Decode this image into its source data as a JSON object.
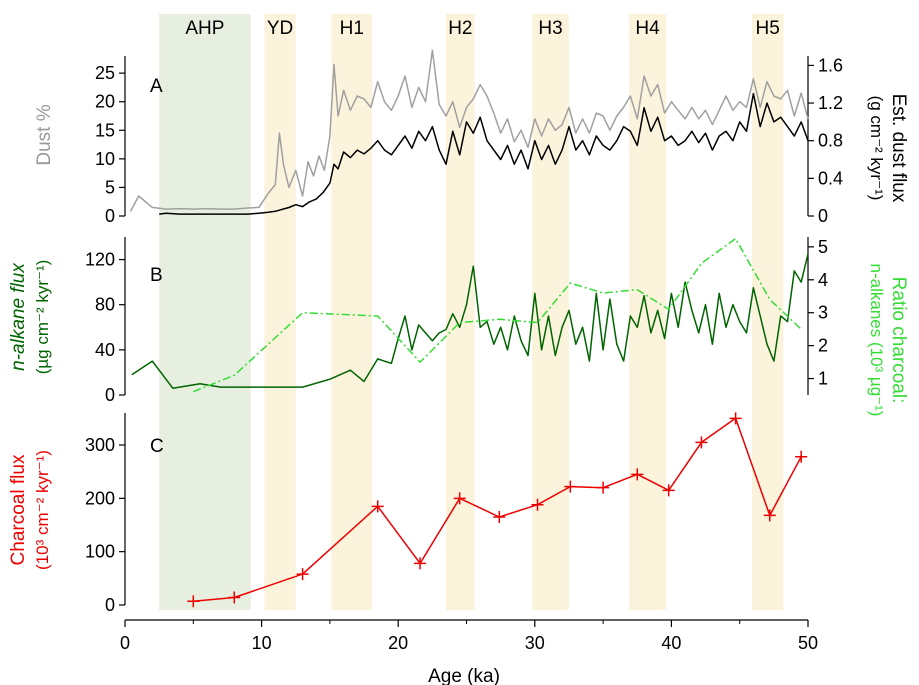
{
  "chart_data": {
    "type": "line",
    "x_axis": {
      "label": "Age (ka)",
      "range": [
        0,
        50
      ],
      "ticks": [
        0,
        10,
        20,
        30,
        40,
        50
      ]
    },
    "shaded_intervals": [
      {
        "label": "AHP",
        "start": 2.5,
        "end": 9.2,
        "color": "#e6efe0"
      },
      {
        "label": "YD",
        "start": 10.2,
        "end": 12.5,
        "color": "#fbf3dc"
      },
      {
        "label": "H1",
        "start": 15.1,
        "end": 18.1,
        "color": "#fbf3dc"
      },
      {
        "label": "H2",
        "start": 23.5,
        "end": 25.6,
        "color": "#fbf3dc"
      },
      {
        "label": "H3",
        "start": 29.8,
        "end": 32.5,
        "color": "#fbf3dc"
      },
      {
        "label": "H4",
        "start": 36.9,
        "end": 39.6,
        "color": "#fbf3dc"
      },
      {
        "label": "H5",
        "start": 45.9,
        "end": 48.2,
        "color": "#fbf3dc"
      }
    ],
    "panels": [
      {
        "id": "A",
        "left_axis": {
          "label": "Dust %",
          "range": [
            0,
            28
          ],
          "ticks": [
            0,
            5,
            10,
            15,
            20,
            25
          ],
          "color": "#999999"
        },
        "right_axis": {
          "label_line1": "Est. dust flux",
          "label_line2": "(g cm⁻² kyr⁻¹)",
          "range": [
            0,
            1.7
          ],
          "ticks": [
            "0",
            "0.4",
            "0.8",
            "1.2",
            "1.6"
          ],
          "color": "#000000"
        },
        "series": [
          {
            "axis": "left",
            "color": "#a0a0a0",
            "x": [
              0.4,
              1.0,
              2.0,
              3.0,
              4.0,
              5.0,
              6.0,
              7.0,
              8.0,
              9.0,
              9.8,
              10.5,
              11.0,
              11.3,
              11.6,
              12.0,
              12.5,
              13.0,
              13.4,
              13.8,
              14.2,
              14.6,
              15.0,
              15.3,
              15.6,
              16.0,
              16.5,
              17.0,
              17.5,
              18.0,
              18.5,
              19.0,
              19.5,
              20.0,
              20.5,
              21.0,
              21.5,
              22.0,
              22.5,
              23.0,
              23.5,
              24.0,
              24.5,
              25.0,
              25.5,
              26.0,
              26.5,
              27.0,
              27.5,
              28.0,
              28.5,
              29.0,
              29.5,
              30.0,
              30.5,
              31.0,
              31.5,
              32.0,
              32.5,
              33.0,
              33.5,
              34.0,
              34.5,
              35.0,
              35.5,
              36.0,
              36.5,
              37.0,
              37.5,
              38.0,
              38.5,
              39.0,
              39.5,
              40.0,
              40.5,
              41.0,
              41.5,
              42.0,
              42.5,
              43.0,
              43.5,
              44.0,
              44.5,
              45.0,
              45.5,
              46.0,
              46.5,
              47.0,
              47.5,
              48.0,
              48.5,
              49.0,
              49.5,
              50.0
            ],
            "y": [
              0.8,
              3.5,
              1.5,
              1.2,
              1.3,
              1.2,
              1.3,
              1.2,
              1.2,
              1.4,
              1.5,
              4.0,
              5.5,
              14.5,
              9.0,
              5.0,
              8.0,
              3.5,
              9.5,
              7.0,
              10.5,
              8.0,
              14.0,
              26.5,
              17.5,
              22.0,
              18.5,
              21.0,
              20.5,
              19.0,
              23.5,
              20.0,
              18.5,
              21.0,
              24.5,
              19.0,
              22.5,
              20.0,
              29.0,
              19.5,
              17.5,
              20.0,
              15.5,
              19.0,
              20.5,
              23.0,
              21.0,
              18.0,
              14.5,
              17.0,
              13.0,
              15.0,
              12.0,
              17.0,
              14.0,
              17.0,
              15.0,
              16.0,
              19.0,
              14.5,
              17.0,
              14.5,
              18.0,
              17.5,
              15.0,
              17.5,
              19.0,
              21.0,
              17.0,
              24.5,
              21.0,
              23.0,
              18.0,
              20.0,
              18.5,
              17.0,
              19.0,
              17.0,
              18.5,
              16.0,
              18.5,
              21.0,
              18.5,
              20.0,
              19.0,
              24.0,
              19.0,
              23.5,
              21.0,
              20.5,
              22.0,
              17.5,
              21.5,
              17.0
            ]
          },
          {
            "axis": "right",
            "color": "#000000",
            "x": [
              2.5,
              3.0,
              4.0,
              5.0,
              6.0,
              7.0,
              8.0,
              9.0,
              9.8,
              10.5,
              11.0,
              11.5,
              12.0,
              12.5,
              13.0,
              13.5,
              14.0,
              14.5,
              15.0,
              15.3,
              15.6,
              16.0,
              16.5,
              17.0,
              17.5,
              18.0,
              18.5,
              19.0,
              19.5,
              20.0,
              20.5,
              21.0,
              21.5,
              22.0,
              22.5,
              23.0,
              23.5,
              24.0,
              24.5,
              25.0,
              25.5,
              26.0,
              26.5,
              27.0,
              27.5,
              28.0,
              28.5,
              29.0,
              29.5,
              30.0,
              30.5,
              31.0,
              31.5,
              32.0,
              32.5,
              33.0,
              33.5,
              34.0,
              34.5,
              35.0,
              35.5,
              36.0,
              36.5,
              37.0,
              37.5,
              38.0,
              38.5,
              39.0,
              39.5,
              40.0,
              40.5,
              41.0,
              41.5,
              42.0,
              42.5,
              43.0,
              43.5,
              44.0,
              44.5,
              45.0,
              45.5,
              46.0,
              46.5,
              47.0,
              47.5,
              48.0,
              48.5,
              49.0,
              49.5,
              50.0
            ],
            "y": [
              0.02,
              0.03,
              0.02,
              0.02,
              0.02,
              0.02,
              0.02,
              0.02,
              0.03,
              0.04,
              0.05,
              0.07,
              0.09,
              0.12,
              0.1,
              0.15,
              0.18,
              0.25,
              0.35,
              0.55,
              0.5,
              0.68,
              0.62,
              0.7,
              0.66,
              0.72,
              0.8,
              0.7,
              0.65,
              0.75,
              0.85,
              0.72,
              0.9,
              0.8,
              0.95,
              0.7,
              0.55,
              0.9,
              0.65,
              1.0,
              0.88,
              1.05,
              0.8,
              0.7,
              0.6,
              0.75,
              0.55,
              0.7,
              0.5,
              0.8,
              0.6,
              0.75,
              0.55,
              0.7,
              0.95,
              0.7,
              0.8,
              0.65,
              0.85,
              0.75,
              0.7,
              0.8,
              0.95,
              0.9,
              0.75,
              1.15,
              0.9,
              1.05,
              0.8,
              0.85,
              0.75,
              0.8,
              0.9,
              0.78,
              0.88,
              0.7,
              0.85,
              0.9,
              0.8,
              1.0,
              0.9,
              1.3,
              0.95,
              1.2,
              1.0,
              1.05,
              0.95,
              0.85,
              1.0,
              0.8
            ]
          }
        ]
      },
      {
        "id": "B",
        "left_axis": {
          "label_line1": "n-alkane flux",
          "label_line2": "(µg cm⁻² kyr⁻¹)",
          "range": [
            0,
            140
          ],
          "ticks": [
            0,
            40,
            80,
            120
          ],
          "color": "#006400"
        },
        "right_axis": {
          "label_line1": "Ratio charcoal:",
          "label_line2": "n-alkanes (10³ µg⁻¹)",
          "range": [
            0.5,
            5.3
          ],
          "ticks": [
            1,
            2,
            3,
            4,
            5
          ],
          "color": "#33dd33"
        },
        "series": [
          {
            "axis": "left",
            "color": "#006400",
            "x": [
              0.5,
              2.0,
              3.5,
              5.5,
              7.0,
              9.0,
              11.0,
              13.0,
              15.0,
              16.5,
              17.5,
              18.5,
              19.5,
              20.0,
              20.5,
              21.0,
              21.5,
              22.0,
              22.5,
              23.0,
              23.5,
              24.0,
              24.5,
              25.0,
              25.5,
              26.0,
              26.5,
              27.0,
              27.5,
              28.0,
              28.5,
              29.0,
              29.5,
              30.0,
              30.5,
              31.0,
              31.5,
              32.0,
              32.5,
              33.0,
              33.5,
              34.0,
              34.5,
              35.0,
              35.5,
              36.0,
              36.5,
              37.0,
              37.5,
              38.0,
              38.5,
              39.0,
              39.5,
              40.0,
              40.5,
              41.0,
              41.5,
              42.0,
              42.5,
              43.0,
              43.5,
              44.0,
              44.5,
              45.0,
              45.5,
              46.0,
              46.5,
              47.0,
              47.5,
              48.0,
              48.5,
              49.0,
              49.5,
              50.0
            ],
            "y": [
              18,
              30,
              6,
              10,
              7,
              7,
              7,
              7,
              14,
              22,
              12,
              32,
              28,
              50,
              70,
              40,
              62,
              55,
              48,
              55,
              58,
              72,
              60,
              80,
              114,
              60,
              65,
              45,
              60,
              40,
              70,
              48,
              35,
              90,
              40,
              70,
              35,
              60,
              75,
              45,
              60,
              30,
              90,
              40,
              85,
              45,
              30,
              70,
              60,
              88,
              55,
              75,
              50,
              90,
              60,
              100,
              75,
              55,
              80,
              45,
              90,
              60,
              80,
              65,
              55,
              95,
              70,
              45,
              30,
              70,
              65,
              110,
              100,
              125
            ]
          },
          {
            "axis": "right",
            "color": "#33dd33",
            "dashed": true,
            "x": [
              5,
              8,
              13,
              18.5,
              21.6,
              24.5,
              27.4,
              30.2,
              32.6,
              35,
              37.5,
              39.8,
              42.2,
              44.7,
              47.2,
              49.5
            ],
            "y": [
              0.6,
              1.1,
              3.0,
              2.9,
              1.5,
              2.7,
              2.8,
              2.7,
              3.9,
              3.6,
              3.7,
              3.1,
              4.5,
              5.25,
              3.4,
              2.5
            ]
          }
        ]
      },
      {
        "id": "C",
        "left_axis": {
          "label_line1": "Charcoal flux",
          "label_line2": "(10³ cm⁻² kyr⁻¹)",
          "range": [
            0,
            360
          ],
          "ticks": [
            0,
            100,
            200,
            300
          ],
          "color": "#ee0000"
        },
        "series": [
          {
            "axis": "left",
            "color": "#ee0000",
            "markers": "cross",
            "x": [
              5,
              8,
              13,
              18.5,
              21.6,
              24.5,
              27.4,
              30.2,
              32.6,
              35,
              37.5,
              39.8,
              42.2,
              44.7,
              47.2,
              49.5
            ],
            "y": [
              7,
              14,
              58,
              185,
              78,
              200,
              165,
              188,
              222,
              220,
              245,
              215,
              305,
              350,
              168,
              278
            ]
          }
        ]
      }
    ]
  }
}
